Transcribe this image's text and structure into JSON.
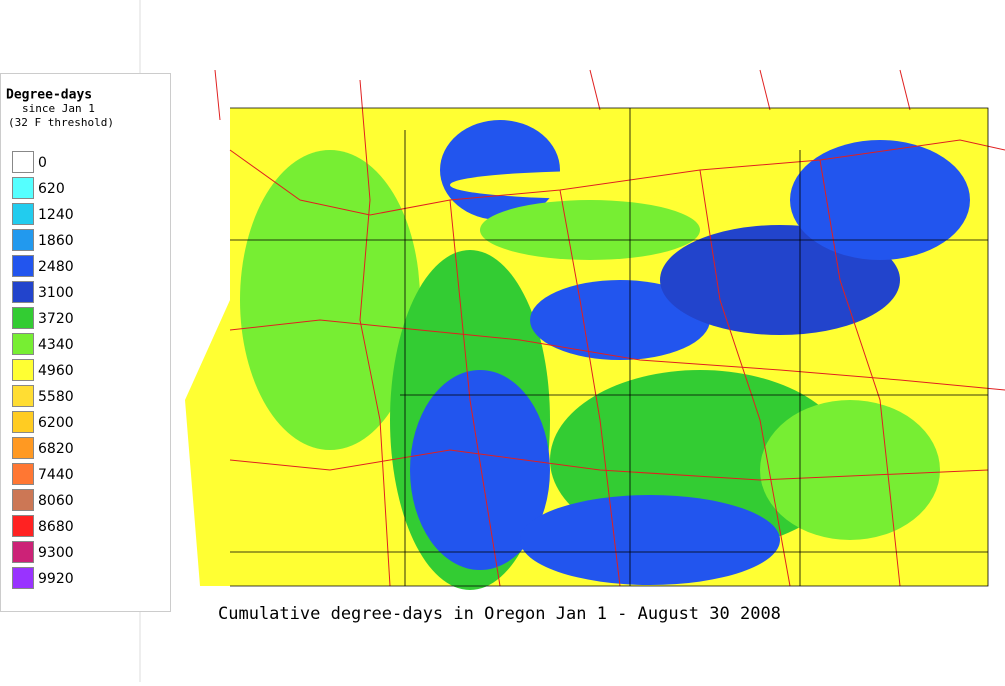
{
  "legend": {
    "title": "Degree-days",
    "subtitle": "since Jan 1",
    "note": "(32 F threshold)",
    "items": [
      {
        "value": 0,
        "color": "#ffffff"
      },
      {
        "value": 620,
        "color": "#55ffff"
      },
      {
        "value": 1240,
        "color": "#22ccee"
      },
      {
        "value": 1860,
        "color": "#2299ee"
      },
      {
        "value": 2480,
        "color": "#2255ee"
      },
      {
        "value": 3100,
        "color": "#2244cc"
      },
      {
        "value": 3720,
        "color": "#33cc33"
      },
      {
        "value": 4340,
        "color": "#77ee33"
      },
      {
        "value": 4960,
        "color": "#ffff33"
      },
      {
        "value": 5580,
        "color": "#ffdd33"
      },
      {
        "value": 6200,
        "color": "#ffcc22"
      },
      {
        "value": 6820,
        "color": "#ff9922"
      },
      {
        "value": 7440,
        "color": "#ff7733"
      },
      {
        "value": 8060,
        "color": "#cc7755"
      },
      {
        "value": 8680,
        "color": "#ff2222"
      },
      {
        "value": 9300,
        "color": "#cc2277"
      },
      {
        "value": 9920,
        "color": "#9933ff"
      }
    ]
  },
  "caption": "Cumulative degree-days in Oregon Jan 1 - August 30 2008"
}
